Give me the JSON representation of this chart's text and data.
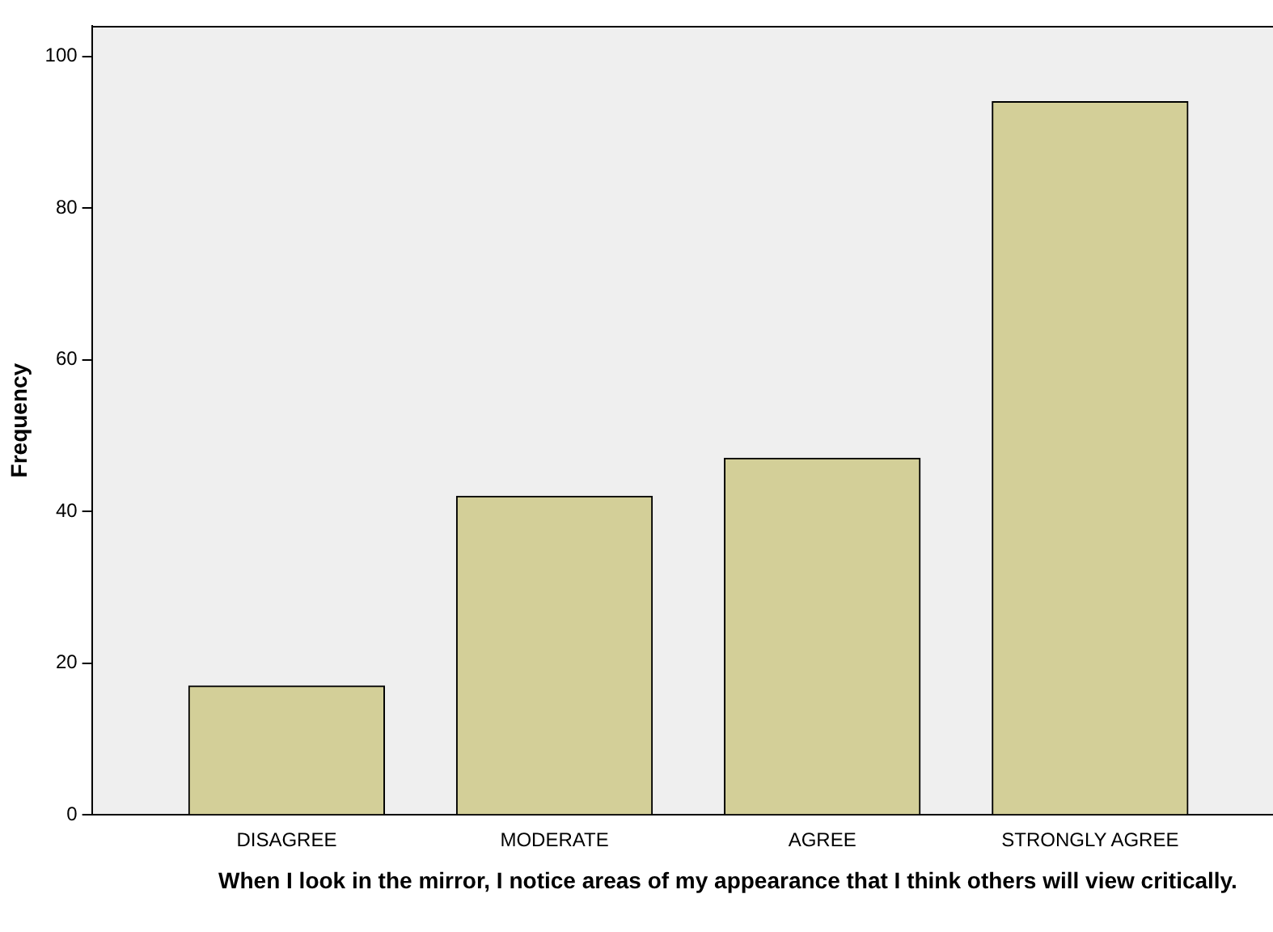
{
  "chart_data": {
    "type": "bar",
    "xlabel": "When I look in the mirror, I notice areas of my appearance that I think others will view critically.",
    "ylabel": "Frequency",
    "categories": [
      "DISAGREE",
      "MODERATE",
      "AGREE",
      "STRONGLY AGREE"
    ],
    "values": [
      17,
      42,
      47,
      94
    ],
    "color": "#d3cf98",
    "ylim": [
      0,
      104
    ],
    "yticks": [
      0,
      20,
      40,
      60,
      80,
      100
    ],
    "grid": false,
    "legend": false
  }
}
